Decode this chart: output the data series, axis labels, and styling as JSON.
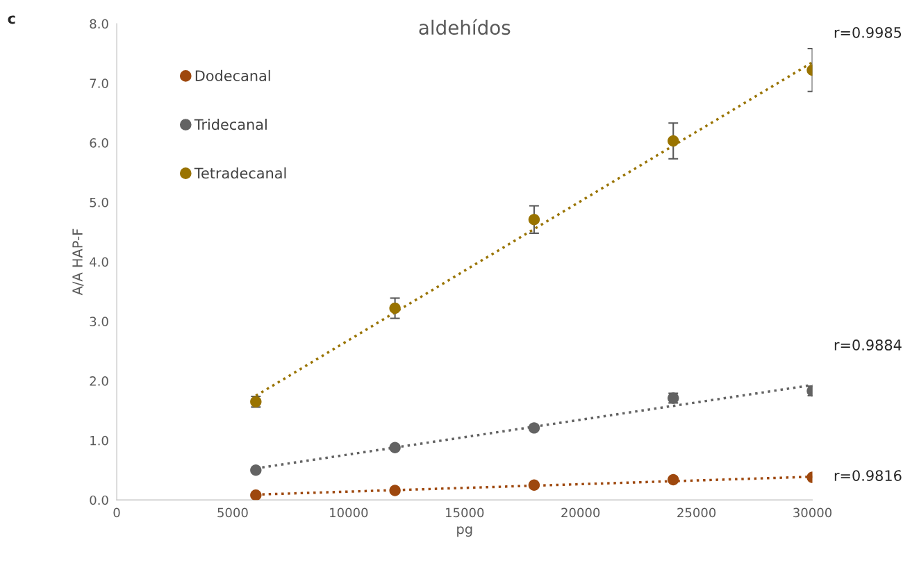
{
  "chart_data": {
    "type": "scatter",
    "title": "aldehídos",
    "xlabel": "pg",
    "ylabel": "A/A HAP-F",
    "x": [
      6000,
      12000,
      18000,
      24000,
      30000
    ],
    "series": [
      {
        "name": "Dodecanal",
        "color": "#9e480e",
        "values": [
          0.08,
          0.16,
          0.25,
          0.34,
          0.38
        ]
      },
      {
        "name": "Tridecanal",
        "color": "#636363",
        "values": [
          0.5,
          0.88,
          1.21,
          1.71,
          1.83
        ],
        "errors": [
          null,
          null,
          null,
          0.08,
          0.08
        ]
      },
      {
        "name": "Tetradecanal",
        "color": "#997300",
        "values": [
          1.65,
          3.22,
          4.71,
          6.03,
          7.22
        ],
        "errors": [
          0.09,
          0.17,
          0.23,
          0.3,
          0.36
        ]
      },
      {
        "type": "line",
        "color": "#9e480e",
        "values": [
          0.09,
          0.165,
          0.24,
          0.315,
          0.39
        ],
        "line_style": "dotted",
        "marker": "none"
      },
      {
        "type": "line",
        "color": "#636363",
        "values": [
          0.53,
          0.88,
          1.23,
          1.58,
          1.93
        ],
        "line_style": "dotted",
        "marker": "none"
      },
      {
        "type": "line",
        "color": "#997300",
        "values": [
          1.75,
          3.15,
          4.55,
          5.95,
          7.35
        ],
        "line_style": "dotted",
        "marker": "none"
      }
    ],
    "xlim": [
      0,
      30000
    ],
    "xticks": [
      0,
      5000,
      10000,
      15000,
      20000,
      25000,
      30000
    ],
    "ylim": [
      0,
      8
    ],
    "yticks": [
      {
        "value": 0,
        "label": "0.0"
      },
      {
        "value": 1,
        "label": "1.0"
      },
      {
        "value": 2,
        "label": "2.0"
      },
      {
        "value": 3,
        "label": "3.0"
      },
      {
        "value": 4,
        "label": "4.0"
      },
      {
        "value": 5,
        "label": "5.0"
      },
      {
        "value": 6,
        "label": "6.0"
      },
      {
        "value": 7,
        "label": "7.0"
      },
      {
        "value": 8,
        "label": "8.0"
      }
    ],
    "annotations": [
      "c",
      "r=0.9985",
      "r=0.9884",
      "r=0.9816"
    ],
    "legend": "top left",
    "grid": false,
    "marker": "circle"
  }
}
